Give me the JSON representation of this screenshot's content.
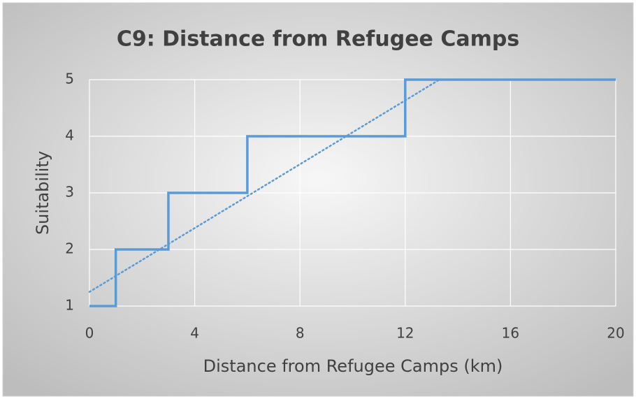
{
  "chart_data": {
    "type": "line",
    "title": "C9: Distance from Refugee Camps",
    "x_label": "Distance from Refugee Camps (km)",
    "y_label": "Suitability",
    "series": [
      {
        "color": "#5b9bd5",
        "line_style": "solid",
        "x": [
          0,
          1,
          1,
          3,
          3,
          6,
          6,
          12,
          12,
          20
        ],
        "values": [
          1,
          1,
          2,
          2,
          3,
          3,
          4,
          4,
          5,
          5
        ]
      },
      {
        "color": "#5b9bd5",
        "line_style": "dotted",
        "x": [
          0,
          13.3
        ],
        "values": [
          1.25,
          5
        ]
      }
    ],
    "xlim": [
      0,
      20
    ],
    "xticks": [
      0,
      4,
      8,
      12,
      16,
      20
    ],
    "ylim": [
      1,
      5
    ],
    "yticks": [
      1,
      2,
      3,
      4,
      5
    ],
    "grid": true
  }
}
